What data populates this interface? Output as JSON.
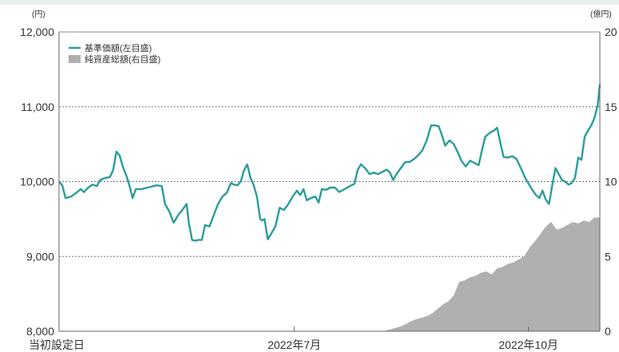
{
  "chart_data": {
    "type": "line",
    "left_unit": "(円)",
    "right_unit": "(億円)",
    "y_left": {
      "min": 8000,
      "max": 12000,
      "ticks": [
        8000,
        9000,
        10000,
        11000,
        12000
      ],
      "tick_labels": [
        "8,000",
        "9,000",
        "10,000",
        "11,000",
        "12,000"
      ]
    },
    "y_right": {
      "min": 0,
      "max": 20,
      "ticks": [
        0,
        5,
        10,
        15,
        20
      ],
      "tick_labels": [
        "0",
        "5",
        "10",
        "15",
        "20"
      ]
    },
    "x_labels": [
      {
        "label": "当初設定日",
        "t": 0.0
      },
      {
        "label": "2022年7月",
        "t": 0.435
      },
      {
        "label": "2022年10月",
        "t": 0.868
      }
    ],
    "grid": "horizontal-dotted",
    "legend_position": "top-left",
    "series": [
      {
        "name": "基準価額(左目盛)",
        "kind": "line",
        "axis": "left",
        "color": "#2a9d9a",
        "points": [
          [
            0.0,
            10000
          ],
          [
            0.006,
            9950
          ],
          [
            0.012,
            9780
          ],
          [
            0.022,
            9800
          ],
          [
            0.032,
            9850
          ],
          [
            0.04,
            9900
          ],
          [
            0.046,
            9860
          ],
          [
            0.054,
            9920
          ],
          [
            0.062,
            9960
          ],
          [
            0.07,
            9940
          ],
          [
            0.076,
            10020
          ],
          [
            0.086,
            10050
          ],
          [
            0.094,
            10060
          ],
          [
            0.1,
            10150
          ],
          [
            0.106,
            10400
          ],
          [
            0.112,
            10350
          ],
          [
            0.118,
            10200
          ],
          [
            0.126,
            10050
          ],
          [
            0.132,
            9900
          ],
          [
            0.136,
            9780
          ],
          [
            0.142,
            9900
          ],
          [
            0.152,
            9900
          ],
          [
            0.164,
            9920
          ],
          [
            0.18,
            9950
          ],
          [
            0.19,
            9940
          ],
          [
            0.196,
            9700
          ],
          [
            0.204,
            9600
          ],
          [
            0.212,
            9450
          ],
          [
            0.22,
            9550
          ],
          [
            0.228,
            9620
          ],
          [
            0.236,
            9700
          ],
          [
            0.24,
            9450
          ],
          [
            0.246,
            9220
          ],
          [
            0.252,
            9210
          ],
          [
            0.258,
            9220
          ],
          [
            0.264,
            9220
          ],
          [
            0.27,
            9420
          ],
          [
            0.278,
            9400
          ],
          [
            0.286,
            9550
          ],
          [
            0.294,
            9700
          ],
          [
            0.302,
            9800
          ],
          [
            0.31,
            9850
          ],
          [
            0.318,
            9980
          ],
          [
            0.324,
            9960
          ],
          [
            0.33,
            9950
          ],
          [
            0.336,
            10000
          ],
          [
            0.342,
            10150
          ],
          [
            0.348,
            10230
          ],
          [
            0.354,
            10050
          ],
          [
            0.36,
            9950
          ],
          [
            0.366,
            9800
          ],
          [
            0.372,
            9500
          ],
          [
            0.376,
            9480
          ],
          [
            0.38,
            9500
          ],
          [
            0.386,
            9230
          ],
          [
            0.392,
            9300
          ],
          [
            0.4,
            9400
          ],
          [
            0.408,
            9650
          ],
          [
            0.416,
            9620
          ],
          [
            0.424,
            9700
          ],
          [
            0.432,
            9800
          ],
          [
            0.44,
            9880
          ],
          [
            0.446,
            9820
          ],
          [
            0.452,
            9900
          ],
          [
            0.458,
            9750
          ],
          [
            0.466,
            9780
          ],
          [
            0.474,
            9800
          ],
          [
            0.48,
            9720
          ],
          [
            0.486,
            9900
          ],
          [
            0.494,
            9890
          ],
          [
            0.502,
            9920
          ],
          [
            0.51,
            9920
          ],
          [
            0.518,
            9860
          ],
          [
            0.528,
            9900
          ],
          [
            0.538,
            9940
          ],
          [
            0.546,
            9970
          ],
          [
            0.552,
            10150
          ],
          [
            0.558,
            10230
          ],
          [
            0.566,
            10180
          ],
          [
            0.574,
            10100
          ],
          [
            0.582,
            10120
          ],
          [
            0.59,
            10100
          ],
          [
            0.598,
            10130
          ],
          [
            0.606,
            10160
          ],
          [
            0.612,
            10120
          ],
          [
            0.618,
            10020
          ],
          [
            0.624,
            10100
          ],
          [
            0.632,
            10180
          ],
          [
            0.64,
            10260
          ],
          [
            0.648,
            10260
          ],
          [
            0.656,
            10300
          ],
          [
            0.664,
            10350
          ],
          [
            0.672,
            10420
          ],
          [
            0.68,
            10550
          ],
          [
            0.688,
            10750
          ],
          [
            0.696,
            10750
          ],
          [
            0.702,
            10740
          ],
          [
            0.708,
            10620
          ],
          [
            0.714,
            10480
          ],
          [
            0.722,
            10550
          ],
          [
            0.73,
            10500
          ],
          [
            0.738,
            10380
          ],
          [
            0.744,
            10280
          ],
          [
            0.752,
            10200
          ],
          [
            0.76,
            10280
          ],
          [
            0.768,
            10250
          ],
          [
            0.776,
            10220
          ],
          [
            0.782,
            10420
          ],
          [
            0.788,
            10600
          ],
          [
            0.796,
            10650
          ],
          [
            0.804,
            10680
          ],
          [
            0.81,
            10720
          ],
          [
            0.816,
            10520
          ],
          [
            0.822,
            10330
          ],
          [
            0.83,
            10320
          ],
          [
            0.838,
            10340
          ],
          [
            0.846,
            10300
          ],
          [
            0.854,
            10180
          ],
          [
            0.862,
            10050
          ],
          [
            0.87,
            9950
          ],
          [
            0.876,
            9880
          ],
          [
            0.882,
            9820
          ],
          [
            0.888,
            9780
          ],
          [
            0.894,
            9880
          ],
          [
            0.9,
            9760
          ],
          [
            0.906,
            9700
          ],
          [
            0.912,
            9950
          ],
          [
            0.918,
            10180
          ],
          [
            0.924,
            10100
          ],
          [
            0.93,
            10020
          ],
          [
            0.936,
            10000
          ],
          [
            0.942,
            9960
          ],
          [
            0.948,
            9980
          ],
          [
            0.954,
            10050
          ],
          [
            0.96,
            10320
          ],
          [
            0.966,
            10290
          ],
          [
            0.972,
            10600
          ],
          [
            0.978,
            10680
          ],
          [
            0.984,
            10750
          ],
          [
            0.99,
            10850
          ],
          [
            0.996,
            11020
          ],
          [
            1.0,
            11300
          ]
        ]
      },
      {
        "name": "純資産総額(右目盛)",
        "kind": "area",
        "axis": "right",
        "color": "#b0b0b0",
        "points": [
          [
            0.59,
            0.0
          ],
          [
            0.6,
            0.0
          ],
          [
            0.61,
            0.1
          ],
          [
            0.62,
            0.2
          ],
          [
            0.63,
            0.3
          ],
          [
            0.64,
            0.45
          ],
          [
            0.65,
            0.65
          ],
          [
            0.66,
            0.8
          ],
          [
            0.67,
            0.9
          ],
          [
            0.68,
            1.0
          ],
          [
            0.69,
            1.2
          ],
          [
            0.7,
            1.5
          ],
          [
            0.71,
            1.8
          ],
          [
            0.72,
            2.0
          ],
          [
            0.73,
            2.4
          ],
          [
            0.74,
            3.3
          ],
          [
            0.75,
            3.4
          ],
          [
            0.76,
            3.6
          ],
          [
            0.77,
            3.7
          ],
          [
            0.78,
            3.9
          ],
          [
            0.79,
            4.0
          ],
          [
            0.8,
            3.8
          ],
          [
            0.81,
            4.2
          ],
          [
            0.82,
            4.3
          ],
          [
            0.83,
            4.5
          ],
          [
            0.84,
            4.6
          ],
          [
            0.85,
            4.8
          ],
          [
            0.86,
            5.0
          ],
          [
            0.87,
            5.6
          ],
          [
            0.88,
            6.0
          ],
          [
            0.89,
            6.5
          ],
          [
            0.9,
            7.0
          ],
          [
            0.91,
            7.3
          ],
          [
            0.92,
            6.8
          ],
          [
            0.93,
            6.9
          ],
          [
            0.94,
            7.1
          ],
          [
            0.95,
            7.3
          ],
          [
            0.96,
            7.2
          ],
          [
            0.97,
            7.4
          ],
          [
            0.98,
            7.3
          ],
          [
            0.99,
            7.6
          ],
          [
            1.0,
            7.6
          ]
        ]
      }
    ]
  }
}
